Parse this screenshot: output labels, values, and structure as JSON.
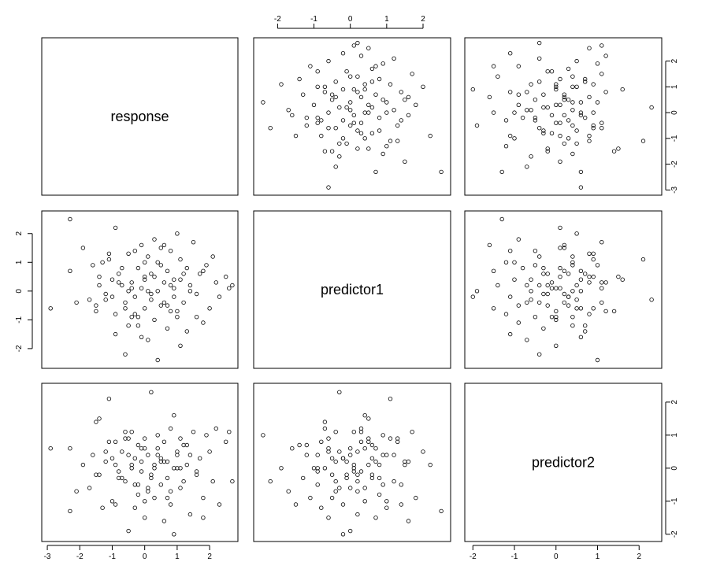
{
  "chart_data": {
    "type": "scatter",
    "variables": [
      "response",
      "predictor1",
      "predictor2"
    ],
    "axis_ticks": {
      "response": [
        -3,
        -2,
        -1,
        0,
        1,
        2
      ],
      "predictor1": [
        -2,
        -1,
        0,
        1,
        2
      ],
      "predictor2": [
        -2,
        -1,
        0,
        1,
        2
      ]
    },
    "axis_ranges": {
      "response": [
        -3.05,
        2.75
      ],
      "predictor1": [
        -2.55,
        2.65
      ],
      "predictor2": [
        -2.1,
        2.45
      ]
    },
    "tick_sides": {
      "top": [
        "predictor1"
      ],
      "right": [
        "response",
        "predictor2"
      ],
      "left": [
        "predictor1"
      ],
      "bottom": [
        "response",
        "predictor2"
      ]
    },
    "points": [
      {
        "response": -2.9,
        "predictor1": -0.6,
        "predictor2": 0.6
      },
      {
        "response": -2.3,
        "predictor1": 2.5,
        "predictor2": -1.3
      },
      {
        "response": -2.3,
        "predictor1": 0.7,
        "predictor2": 0.6
      },
      {
        "response": -1.9,
        "predictor1": 1.5,
        "predictor2": 0.1
      },
      {
        "response": -1.7,
        "predictor1": -0.3,
        "predictor2": -0.6
      },
      {
        "response": -1.6,
        "predictor1": 0.9,
        "predictor2": 0.4
      },
      {
        "response": -1.5,
        "predictor1": -0.5,
        "predictor2": -0.2
      },
      {
        "response": -1.4,
        "predictor1": 0.5,
        "predictor2": 1.5
      },
      {
        "response": -1.3,
        "predictor1": 1.0,
        "predictor2": -1.2
      },
      {
        "response": -1.2,
        "predictor1": -0.1,
        "predictor2": 0.2
      },
      {
        "response": -1.1,
        "predictor1": 1.1,
        "predictor2": 2.1
      },
      {
        "response": -1.0,
        "predictor1": 0.4,
        "predictor2": -1.0
      },
      {
        "response": -0.9,
        "predictor1": -0.8,
        "predictor2": 0.8
      },
      {
        "response": -0.9,
        "predictor1": -1.5,
        "predictor2": -1.1
      },
      {
        "response": -0.8,
        "predictor1": 0.6,
        "predictor2": -0.3
      },
      {
        "response": -0.7,
        "predictor1": 0.2,
        "predictor2": 0.5
      },
      {
        "response": -0.6,
        "predictor1": -0.4,
        "predictor2": 1.1
      },
      {
        "response": -0.6,
        "predictor1": -2.2,
        "predictor2": -0.4
      },
      {
        "response": -0.5,
        "predictor1": 1.3,
        "predictor2": 0.9
      },
      {
        "response": -0.5,
        "predictor1": 0.0,
        "predictor2": -1.9
      },
      {
        "response": -0.4,
        "predictor1": -0.9,
        "predictor2": 0.0
      },
      {
        "response": -0.4,
        "predictor1": 0.3,
        "predictor2": 1.1
      },
      {
        "response": -0.3,
        "predictor1": 1.4,
        "predictor2": -0.5
      },
      {
        "response": -0.3,
        "predictor1": -0.2,
        "predictor2": 0.3
      },
      {
        "response": -0.2,
        "predictor1": 0.8,
        "predictor2": -0.8
      },
      {
        "response": -0.2,
        "predictor1": -1.2,
        "predictor2": 0.7
      },
      {
        "response": -0.1,
        "predictor1": 0.1,
        "predictor2": -0.1
      },
      {
        "response": -0.1,
        "predictor1": 1.6,
        "predictor2": 0.2
      },
      {
        "response": 0.0,
        "predictor1": -0.6,
        "predictor2": -1.5
      },
      {
        "response": 0.0,
        "predictor1": 0.5,
        "predictor2": 0.9
      },
      {
        "response": 0.1,
        "predictor1": -1.7,
        "predictor2": -0.7
      },
      {
        "response": 0.1,
        "predictor1": 1.2,
        "predictor2": 0.4
      },
      {
        "response": 0.2,
        "predictor1": -0.3,
        "predictor2": 2.3
      },
      {
        "response": 0.2,
        "predictor1": 0.6,
        "predictor2": -0.2
      },
      {
        "response": 0.3,
        "predictor1": -1.0,
        "predictor2": 0.0
      },
      {
        "response": 0.3,
        "predictor1": 1.8,
        "predictor2": -0.9
      },
      {
        "response": 0.4,
        "predictor1": 0.0,
        "predictor2": 0.6
      },
      {
        "response": 0.4,
        "predictor1": -2.4,
        "predictor2": 1.0
      },
      {
        "response": 0.5,
        "predictor1": 0.9,
        "predictor2": -0.5
      },
      {
        "response": 0.5,
        "predictor1": -0.5,
        "predictor2": 0.3
      },
      {
        "response": 0.6,
        "predictor1": 1.6,
        "predictor2": -1.6
      },
      {
        "response": 0.6,
        "predictor1": 0.3,
        "predictor2": 0.8
      },
      {
        "response": 0.7,
        "predictor1": -1.3,
        "predictor2": -0.3
      },
      {
        "response": 0.7,
        "predictor1": 0.7,
        "predictor2": 0.2
      },
      {
        "response": 0.8,
        "predictor1": -0.7,
        "predictor2": 1.2
      },
      {
        "response": 0.8,
        "predictor1": 1.4,
        "predictor2": -1.1
      },
      {
        "response": 0.9,
        "predictor1": 0.1,
        "predictor2": 0.0
      },
      {
        "response": 0.9,
        "predictor1": -0.2,
        "predictor2": -2.0
      },
      {
        "response": 1.0,
        "predictor1": 2.0,
        "predictor2": 0.5
      },
      {
        "response": 1.0,
        "predictor1": -0.9,
        "predictor2": 0.4
      },
      {
        "response": 1.1,
        "predictor1": 0.4,
        "predictor2": -0.6
      },
      {
        "response": 1.1,
        "predictor1": 1.1,
        "predictor2": 0.9
      },
      {
        "response": 1.2,
        "predictor1": -0.4,
        "predictor2": -0.4
      },
      {
        "response": 1.3,
        "predictor1": 0.8,
        "predictor2": 0.1
      },
      {
        "response": 1.3,
        "predictor1": -1.4,
        "predictor2": 0.7
      },
      {
        "response": 1.4,
        "predictor1": 0.2,
        "predictor2": -1.4
      },
      {
        "response": 1.5,
        "predictor1": 1.7,
        "predictor2": 1.1
      },
      {
        "response": 1.6,
        "predictor1": -0.1,
        "predictor2": -0.2
      },
      {
        "response": 1.7,
        "predictor1": 0.6,
        "predictor2": 0.3
      },
      {
        "response": 1.8,
        "predictor1": -1.1,
        "predictor2": -0.9
      },
      {
        "response": 1.9,
        "predictor1": 0.9,
        "predictor2": 1.0
      },
      {
        "response": 2.0,
        "predictor1": -0.6,
        "predictor2": 0.5
      },
      {
        "response": 2.1,
        "predictor1": 1.2,
        "predictor2": -0.4
      },
      {
        "response": 2.2,
        "predictor1": 0.3,
        "predictor2": 1.2
      },
      {
        "response": 2.3,
        "predictor1": -0.2,
        "predictor2": -1.1
      },
      {
        "response": 2.5,
        "predictor1": 0.5,
        "predictor2": 0.8
      },
      {
        "response": 2.6,
        "predictor1": 0.1,
        "predictor2": 1.1
      },
      {
        "response": -1.0,
        "predictor1": -0.2,
        "predictor2": 0.3
      },
      {
        "response": -0.8,
        "predictor1": 0.3,
        "predictor2": -0.1
      },
      {
        "response": -0.6,
        "predictor1": -0.6,
        "predictor2": 0.9
      },
      {
        "response": -0.4,
        "predictor1": 0.1,
        "predictor2": 0.1
      },
      {
        "response": -0.2,
        "predictor1": -0.9,
        "predictor2": -0.5
      },
      {
        "response": 0.0,
        "predictor1": 0.4,
        "predictor2": 0.6
      },
      {
        "response": 0.2,
        "predictor1": -0.1,
        "predictor2": -0.3
      },
      {
        "response": 0.4,
        "predictor1": 1.0,
        "predictor2": 0.4
      },
      {
        "response": 0.6,
        "predictor1": -0.4,
        "predictor2": 0.2
      },
      {
        "response": 0.8,
        "predictor1": 0.2,
        "predictor2": -0.7
      },
      {
        "response": 1.0,
        "predictor1": -0.7,
        "predictor2": 0.0
      },
      {
        "response": 1.2,
        "predictor1": 0.6,
        "predictor2": 0.7
      },
      {
        "response": -1.4,
        "predictor1": 0.2,
        "predictor2": -0.2
      },
      {
        "response": -1.2,
        "predictor1": -0.3,
        "predictor2": 0.5
      },
      {
        "response": 0.1,
        "predictor1": 0.0,
        "predictor2": -0.6
      },
      {
        "response": 0.3,
        "predictor1": 0.5,
        "predictor2": 0.1
      },
      {
        "response": -0.3,
        "predictor1": -0.8,
        "predictor2": -1.2
      },
      {
        "response": 0.5,
        "predictor1": 1.5,
        "predictor2": 0.2
      },
      {
        "response": -0.1,
        "predictor1": -1.6,
        "predictor2": 0.6
      },
      {
        "response": 0.7,
        "predictor1": -0.5,
        "predictor2": -0.9
      },
      {
        "response": 1.4,
        "predictor1": 0.0,
        "predictor2": 0.4
      },
      {
        "response": -0.7,
        "predictor1": 0.8,
        "predictor2": -0.3
      },
      {
        "response": 0.9,
        "predictor1": 0.4,
        "predictor2": 1.6
      },
      {
        "response": 1.6,
        "predictor1": -0.9,
        "predictor2": -0.1
      },
      {
        "response": -1.1,
        "predictor1": 1.3,
        "predictor2": 0.8
      },
      {
        "response": -0.5,
        "predictor1": -1.2,
        "predictor2": 0.4
      },
      {
        "response": 0.0,
        "predictor1": 1.0,
        "predictor2": -1.0
      },
      {
        "response": 1.1,
        "predictor1": -1.9,
        "predictor2": 0.0
      },
      {
        "response": -1.5,
        "predictor1": -0.7,
        "predictor2": 1.4
      },
      {
        "response": 2.7,
        "predictor1": 0.2,
        "predictor2": -0.4
      },
      {
        "response": -2.1,
        "predictor1": -0.4,
        "predictor2": -0.7
      },
      {
        "response": 1.8,
        "predictor1": 0.7,
        "predictor2": -1.5
      },
      {
        "response": -0.9,
        "predictor1": 2.2,
        "predictor2": 0.1
      }
    ]
  }
}
